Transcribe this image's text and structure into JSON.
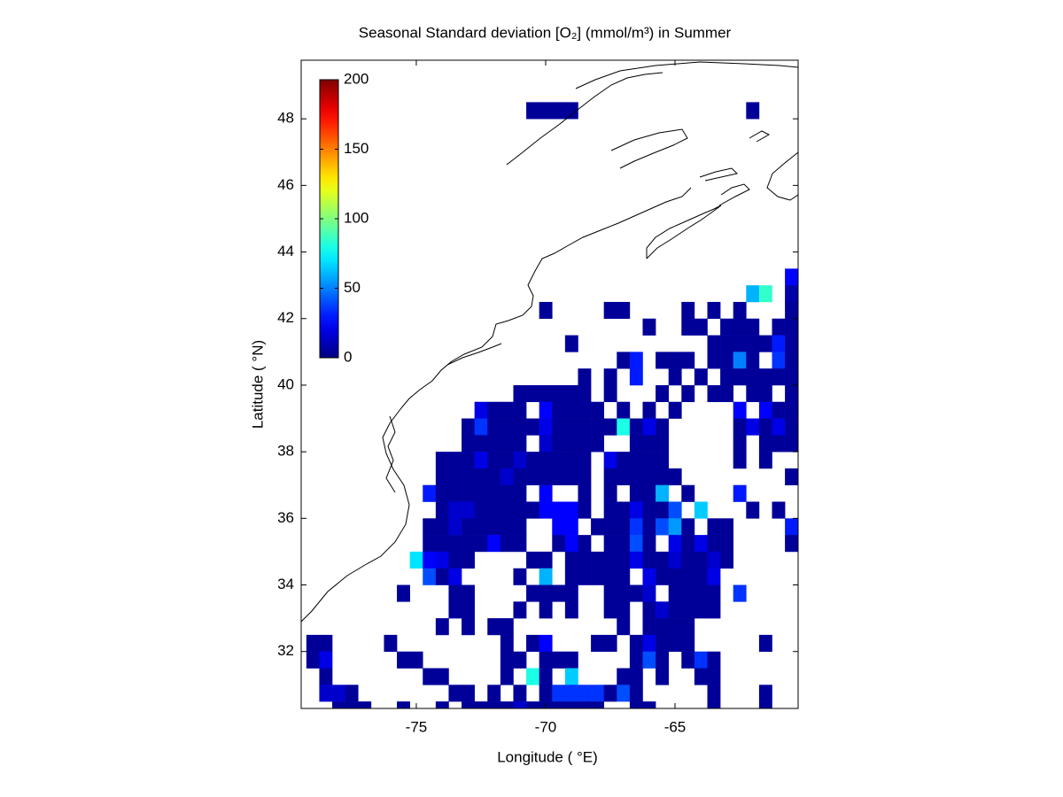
{
  "chart_data": {
    "type": "heatmap",
    "title": "Seasonal Standard deviation [O₂] (mmol/m³) in  Summer",
    "x_label": "Longitude ( °E)",
    "y_label": "Latitude ( °N)",
    "xlim": [
      -79.45,
      -60.24
    ],
    "ylim": [
      30.29,
      49.76
    ],
    "xticks": [
      -75,
      -70,
      -65
    ],
    "yticks": [
      32,
      34,
      36,
      38,
      40,
      42,
      44,
      46,
      48
    ],
    "colormap": "jet",
    "clim": [
      0,
      200
    ],
    "cticks": [
      0,
      50,
      100,
      150,
      200
    ],
    "x": [
      -79,
      -78.5,
      -78,
      -77.5,
      -77,
      -76.5,
      -76,
      -75.5,
      -75,
      -74.5,
      -74,
      -73.5,
      -73,
      -72.5,
      -72,
      -71.5,
      -71,
      -70.5,
      -70,
      -69.5,
      -69,
      -68.5,
      -68,
      -67.5,
      -67,
      -66.5,
      -66,
      -65.5,
      -65,
      -64.5,
      -64,
      -63.5,
      -63,
      -62.5,
      -62,
      -61.5,
      -61,
      -60.5
    ],
    "y": [
      48.25,
      43.25,
      42.75,
      42.25,
      41.75,
      41.25,
      40.75,
      40.25,
      39.75,
      39.25,
      38.75,
      38.25,
      37.75,
      37.25,
      36.75,
      36.25,
      35.75,
      35.25,
      34.75,
      34.25,
      33.75,
      33.25,
      32.75,
      32.25,
      31.75,
      31.25,
      30.75,
      30.25
    ],
    "z": [
      [
        null,
        null,
        null,
        null,
        null,
        null,
        null,
        null,
        null,
        null,
        null,
        null,
        null,
        null,
        null,
        null,
        null,
        5,
        5,
        5,
        5,
        null,
        null,
        null,
        null,
        null,
        null,
        null,
        null,
        null,
        null,
        null,
        null,
        null,
        5,
        null,
        null,
        null
      ],
      [
        null,
        null,
        null,
        null,
        null,
        null,
        null,
        null,
        null,
        null,
        null,
        null,
        null,
        null,
        null,
        null,
        null,
        null,
        null,
        null,
        null,
        null,
        null,
        null,
        null,
        null,
        null,
        null,
        null,
        null,
        null,
        null,
        null,
        null,
        null,
        null,
        null,
        25
      ],
      [
        null,
        null,
        null,
        null,
        null,
        null,
        null,
        null,
        null,
        null,
        null,
        null,
        null,
        null,
        null,
        null,
        null,
        null,
        null,
        null,
        null,
        null,
        null,
        null,
        null,
        null,
        null,
        null,
        null,
        null,
        null,
        null,
        null,
        null,
        60,
        85,
        null,
        8
      ],
      [
        null,
        null,
        null,
        null,
        null,
        null,
        null,
        null,
        null,
        null,
        null,
        null,
        null,
        null,
        null,
        null,
        null,
        null,
        5,
        null,
        null,
        null,
        null,
        5,
        5,
        null,
        null,
        null,
        null,
        5,
        null,
        5,
        null,
        5,
        null,
        null,
        null,
        5
      ],
      [
        null,
        null,
        null,
        null,
        null,
        null,
        null,
        null,
        null,
        null,
        null,
        null,
        null,
        null,
        null,
        null,
        null,
        null,
        null,
        null,
        null,
        null,
        null,
        null,
        null,
        null,
        5,
        null,
        null,
        5,
        5,
        null,
        5,
        5,
        5,
        null,
        5,
        5
      ],
      [
        null,
        null,
        null,
        null,
        null,
        null,
        null,
        null,
        null,
        null,
        null,
        null,
        null,
        null,
        null,
        null,
        null,
        null,
        null,
        null,
        5,
        null,
        null,
        null,
        null,
        null,
        null,
        null,
        null,
        null,
        null,
        5,
        5,
        5,
        5,
        5,
        30,
        5
      ],
      [
        null,
        null,
        null,
        null,
        null,
        null,
        null,
        null,
        null,
        null,
        null,
        null,
        null,
        null,
        null,
        null,
        null,
        null,
        null,
        null,
        null,
        null,
        null,
        null,
        5,
        30,
        null,
        5,
        5,
        5,
        null,
        5,
        5,
        50,
        5,
        null,
        35,
        5
      ],
      [
        null,
        null,
        null,
        null,
        null,
        null,
        null,
        null,
        null,
        null,
        null,
        null,
        null,
        null,
        null,
        null,
        null,
        null,
        null,
        null,
        null,
        5,
        null,
        5,
        null,
        30,
        null,
        null,
        5,
        null,
        5,
        null,
        5,
        5,
        5,
        5,
        5,
        5
      ],
      [
        null,
        null,
        null,
        null,
        null,
        null,
        null,
        null,
        null,
        null,
        null,
        null,
        null,
        null,
        null,
        null,
        5,
        5,
        5,
        5,
        5,
        5,
        null,
        5,
        null,
        null,
        null,
        5,
        null,
        5,
        null,
        5,
        5,
        null,
        5,
        5,
        null,
        5
      ],
      [
        null,
        null,
        null,
        null,
        null,
        null,
        null,
        null,
        null,
        null,
        null,
        null,
        null,
        20,
        5,
        5,
        5,
        null,
        25,
        5,
        5,
        5,
        5,
        null,
        5,
        null,
        5,
        null,
        5,
        null,
        null,
        null,
        null,
        25,
        null,
        25,
        5,
        5
      ],
      [
        null,
        null,
        null,
        null,
        null,
        null,
        null,
        null,
        null,
        null,
        null,
        null,
        5,
        35,
        5,
        5,
        5,
        5,
        20,
        5,
        5,
        5,
        5,
        5,
        80,
        5,
        20,
        5,
        null,
        null,
        null,
        null,
        null,
        5,
        20,
        5,
        20,
        5
      ],
      [
        null,
        null,
        null,
        null,
        null,
        null,
        null,
        null,
        null,
        null,
        null,
        null,
        5,
        5,
        5,
        5,
        5,
        null,
        15,
        5,
        5,
        5,
        5,
        null,
        null,
        5,
        5,
        5,
        null,
        null,
        null,
        null,
        null,
        5,
        null,
        5,
        5,
        5
      ],
      [
        null,
        null,
        null,
        null,
        null,
        null,
        null,
        null,
        null,
        null,
        5,
        5,
        5,
        20,
        5,
        5,
        15,
        5,
        5,
        5,
        5,
        5,
        null,
        20,
        5,
        5,
        5,
        5,
        null,
        null,
        null,
        null,
        null,
        5,
        null,
        5,
        null,
        null
      ],
      [
        null,
        null,
        null,
        null,
        null,
        null,
        null,
        null,
        null,
        null,
        5,
        5,
        5,
        5,
        5,
        15,
        5,
        5,
        5,
        5,
        5,
        5,
        null,
        5,
        5,
        5,
        5,
        5,
        5,
        null,
        null,
        null,
        null,
        null,
        null,
        null,
        null,
        5
      ],
      [
        null,
        null,
        null,
        null,
        null,
        null,
        null,
        null,
        null,
        30,
        5,
        5,
        5,
        5,
        5,
        5,
        5,
        null,
        25,
        null,
        null,
        5,
        null,
        5,
        null,
        5,
        5,
        60,
        null,
        5,
        null,
        null,
        null,
        30,
        null,
        null,
        null,
        null
      ],
      [
        null,
        null,
        null,
        null,
        null,
        null,
        null,
        null,
        null,
        null,
        5,
        15,
        15,
        5,
        5,
        5,
        5,
        5,
        25,
        25,
        25,
        5,
        null,
        5,
        5,
        20,
        5,
        5,
        40,
        null,
        65,
        null,
        null,
        null,
        5,
        null,
        5,
        null
      ],
      [
        null,
        null,
        null,
        null,
        null,
        null,
        null,
        null,
        null,
        5,
        5,
        15,
        5,
        5,
        5,
        5,
        5,
        null,
        null,
        25,
        25,
        null,
        5,
        5,
        5,
        35,
        5,
        40,
        55,
        5,
        null,
        5,
        5,
        null,
        null,
        null,
        null,
        30
      ],
      [
        null,
        null,
        null,
        null,
        null,
        null,
        null,
        null,
        null,
        5,
        5,
        5,
        5,
        5,
        25,
        5,
        5,
        null,
        null,
        5,
        25,
        5,
        null,
        5,
        5,
        40,
        5,
        null,
        20,
        5,
        20,
        5,
        5,
        null,
        null,
        null,
        null,
        5
      ],
      [
        null,
        null,
        null,
        null,
        null,
        null,
        null,
        null,
        70,
        25,
        20,
        5,
        5,
        null,
        null,
        null,
        null,
        5,
        5,
        null,
        5,
        5,
        5,
        5,
        5,
        20,
        5,
        5,
        15,
        5,
        5,
        15,
        5,
        null,
        null,
        null,
        null,
        null
      ],
      [
        null,
        null,
        null,
        null,
        null,
        null,
        null,
        null,
        null,
        40,
        5,
        20,
        null,
        null,
        null,
        null,
        5,
        null,
        60,
        null,
        5,
        5,
        5,
        5,
        5,
        null,
        20,
        5,
        5,
        5,
        5,
        20,
        null,
        null,
        null,
        null,
        null,
        null
      ],
      [
        null,
        null,
        null,
        null,
        null,
        null,
        null,
        5,
        null,
        null,
        null,
        5,
        5,
        null,
        null,
        null,
        null,
        5,
        5,
        5,
        5,
        null,
        null,
        5,
        5,
        5,
        15,
        null,
        5,
        5,
        5,
        5,
        null,
        35,
        null,
        null,
        null,
        null
      ],
      [
        null,
        null,
        null,
        null,
        null,
        null,
        null,
        null,
        null,
        null,
        null,
        5,
        5,
        null,
        null,
        null,
        5,
        null,
        5,
        null,
        5,
        null,
        null,
        5,
        5,
        null,
        5,
        15,
        5,
        5,
        5,
        5,
        null,
        null,
        null,
        null,
        null,
        null
      ],
      [
        null,
        null,
        null,
        null,
        null,
        null,
        null,
        null,
        null,
        null,
        5,
        null,
        5,
        null,
        5,
        5,
        null,
        null,
        null,
        null,
        null,
        null,
        null,
        null,
        5,
        null,
        5,
        5,
        5,
        5,
        null,
        null,
        null,
        null,
        null,
        null,
        null,
        null
      ],
      [
        5,
        5,
        null,
        null,
        null,
        null,
        5,
        null,
        null,
        null,
        null,
        null,
        null,
        null,
        null,
        5,
        null,
        5,
        25,
        null,
        null,
        null,
        5,
        5,
        null,
        5,
        20,
        5,
        5,
        5,
        null,
        null,
        null,
        null,
        null,
        5,
        null,
        null
      ],
      [
        5,
        20,
        null,
        null,
        null,
        null,
        null,
        5,
        5,
        null,
        null,
        null,
        null,
        null,
        null,
        5,
        5,
        null,
        5,
        5,
        5,
        null,
        null,
        null,
        null,
        5,
        40,
        5,
        null,
        5,
        35,
        5,
        null,
        null,
        null,
        null,
        null,
        null
      ],
      [
        null,
        5,
        null,
        null,
        null,
        null,
        null,
        null,
        null,
        5,
        5,
        null,
        null,
        null,
        null,
        5,
        null,
        80,
        5,
        null,
        65,
        null,
        null,
        null,
        5,
        5,
        null,
        5,
        null,
        null,
        5,
        5,
        null,
        null,
        null,
        null,
        null,
        null
      ],
      [
        null,
        15,
        15,
        5,
        null,
        null,
        null,
        null,
        null,
        null,
        null,
        5,
        5,
        null,
        5,
        null,
        5,
        null,
        5,
        35,
        35,
        35,
        35,
        5,
        40,
        5,
        null,
        null,
        null,
        null,
        null,
        5,
        null,
        null,
        null,
        5,
        null,
        null
      ],
      [
        null,
        null,
        5,
        5,
        5,
        null,
        null,
        5,
        null,
        null,
        5,
        null,
        5,
        5,
        5,
        5,
        15,
        5,
        5,
        5,
        5,
        5,
        5,
        null,
        null,
        5,
        5,
        null,
        null,
        null,
        null,
        5,
        null,
        null,
        null,
        5,
        null,
        null
      ]
    ]
  }
}
